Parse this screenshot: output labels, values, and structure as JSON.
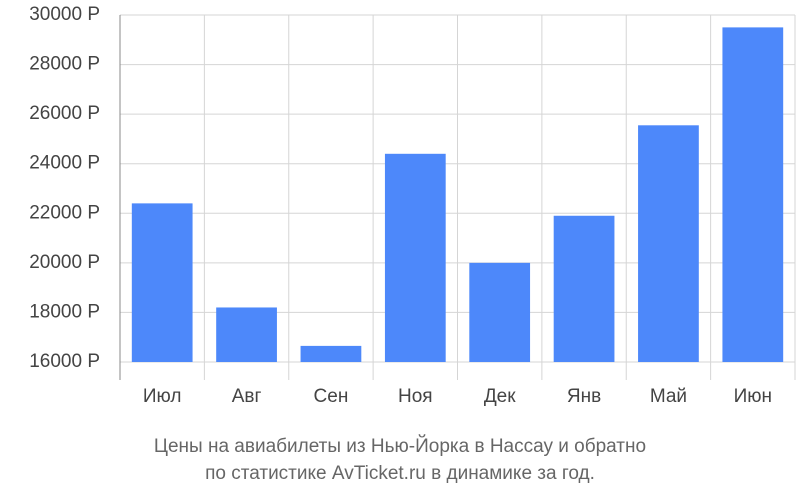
{
  "chart_data": {
    "type": "bar",
    "caption": [
      "Цены на авиабилеты из Нью-Йорка в Нассау и обратно",
      "по статистике AvTicket.ru в динамике за год."
    ],
    "categories": [
      "Июл",
      "Авг",
      "Сен",
      "Ноя",
      "Дек",
      "Янв",
      "Май",
      "Июн"
    ],
    "values": [
      22400,
      18200,
      16650,
      24400,
      20000,
      21900,
      25550,
      29500
    ],
    "color": "#4d88fa",
    "ylim": [
      16000,
      30000
    ],
    "yticks": [
      {
        "value": 16000,
        "label": "16000 Р"
      },
      {
        "value": 18000,
        "label": "18000 Р"
      },
      {
        "value": 20000,
        "label": "20000 Р"
      },
      {
        "value": 22000,
        "label": "22000 Р"
      },
      {
        "value": 24000,
        "label": "24000 Р"
      },
      {
        "value": 26000,
        "label": "26000 Р"
      },
      {
        "value": 28000,
        "label": "28000 Р"
      },
      {
        "value": 30000,
        "label": "30000 Р"
      }
    ],
    "grid": true
  }
}
